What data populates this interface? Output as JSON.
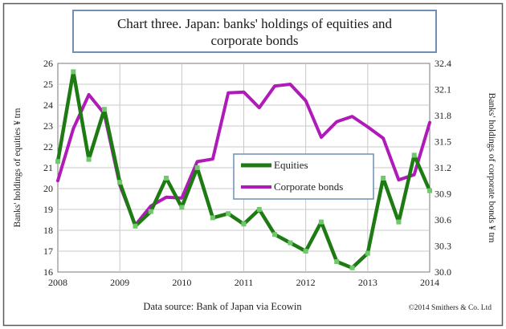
{
  "page_title": "Chart three. Japan: banks' holdings of equities and corporate bonds",
  "chart_data": {
    "type": "line",
    "title_lines": [
      "Chart three. Japan: banks' holdings of equities and",
      "corporate bonds"
    ],
    "xlabel": "",
    "ylabel": "Banks' holdings of equities ¥ trn",
    "y2label": "Banks' holdings of corporate bonds ¥ trn",
    "x_ticks": [
      "2008",
      "2009",
      "2010",
      "2011",
      "2012",
      "2013",
      "2014"
    ],
    "xlim": [
      2008.0,
      2014.0
    ],
    "ylim": [
      16,
      26
    ],
    "y_ticks": [
      "16",
      "17",
      "18",
      "19",
      "20",
      "21",
      "22",
      "23",
      "24",
      "25",
      "26"
    ],
    "y2lim": [
      30.0,
      32.4
    ],
    "y2_ticks": [
      "30.0",
      "30.3",
      "30.6",
      "30.9",
      "31.2",
      "31.5",
      "31.8",
      "32.1",
      "32.4"
    ],
    "grid": true,
    "legend_position": "center-right",
    "x": [
      2008.0,
      2008.25,
      2008.5,
      2008.75,
      2009.0,
      2009.25,
      2009.5,
      2009.75,
      2010.0,
      2010.25,
      2010.5,
      2010.75,
      2011.0,
      2011.25,
      2011.5,
      2011.75,
      2012.0,
      2012.25,
      2012.5,
      2012.75,
      2013.0,
      2013.25,
      2013.5,
      2013.75,
      2014.0
    ],
    "series": [
      {
        "name": "Equities",
        "axis": "left",
        "color": "#1e7a12",
        "values": [
          21.3,
          25.6,
          21.4,
          23.8,
          20.3,
          18.2,
          18.9,
          20.5,
          19.1,
          21.0,
          18.6,
          18.8,
          18.3,
          19.0,
          17.8,
          17.4,
          17.0,
          18.4,
          16.5,
          16.2,
          16.9,
          20.5,
          18.4,
          21.6,
          19.9
        ]
      },
      {
        "name": "Corporate bonds",
        "axis": "right",
        "color": "#b01ab8",
        "values": [
          31.05,
          31.65,
          32.04,
          31.82,
          31.0,
          30.54,
          30.76,
          30.86,
          30.85,
          31.27,
          31.3,
          32.06,
          32.07,
          31.89,
          32.14,
          32.16,
          31.97,
          31.55,
          31.73,
          31.79,
          31.67,
          31.54,
          31.06,
          31.12,
          31.72
        ]
      }
    ],
    "source": "Data source: Bank of Japan via Ecowin",
    "copyright": "©2014 Smithers & Co. Ltd"
  }
}
